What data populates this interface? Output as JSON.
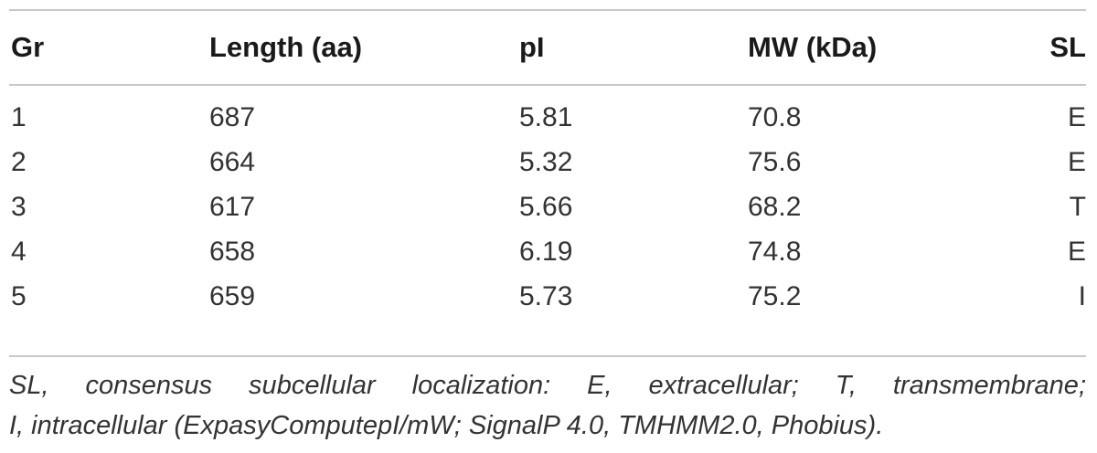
{
  "table": {
    "headers": [
      "Gr",
      "Length (aa)",
      "pI",
      "MW (kDa)",
      "SL"
    ],
    "rows": [
      [
        "1",
        "687",
        "5.81",
        "70.8",
        "E"
      ],
      [
        "2",
        "664",
        "5.32",
        "75.6",
        "E"
      ],
      [
        "3",
        "617",
        "5.66",
        "68.2",
        "T"
      ],
      [
        "4",
        "658",
        "6.19",
        "74.8",
        "E"
      ],
      [
        "5",
        "659",
        "5.73",
        "75.2",
        "I"
      ]
    ]
  },
  "footnote": {
    "line1": "SL, consensus subcellular localization: E, extracellular; T, transmembrane;",
    "line2": "I, intracellular (ExpasyComputepI/mW; SignalP 4.0, TMHMM2.0, Phobius)."
  }
}
